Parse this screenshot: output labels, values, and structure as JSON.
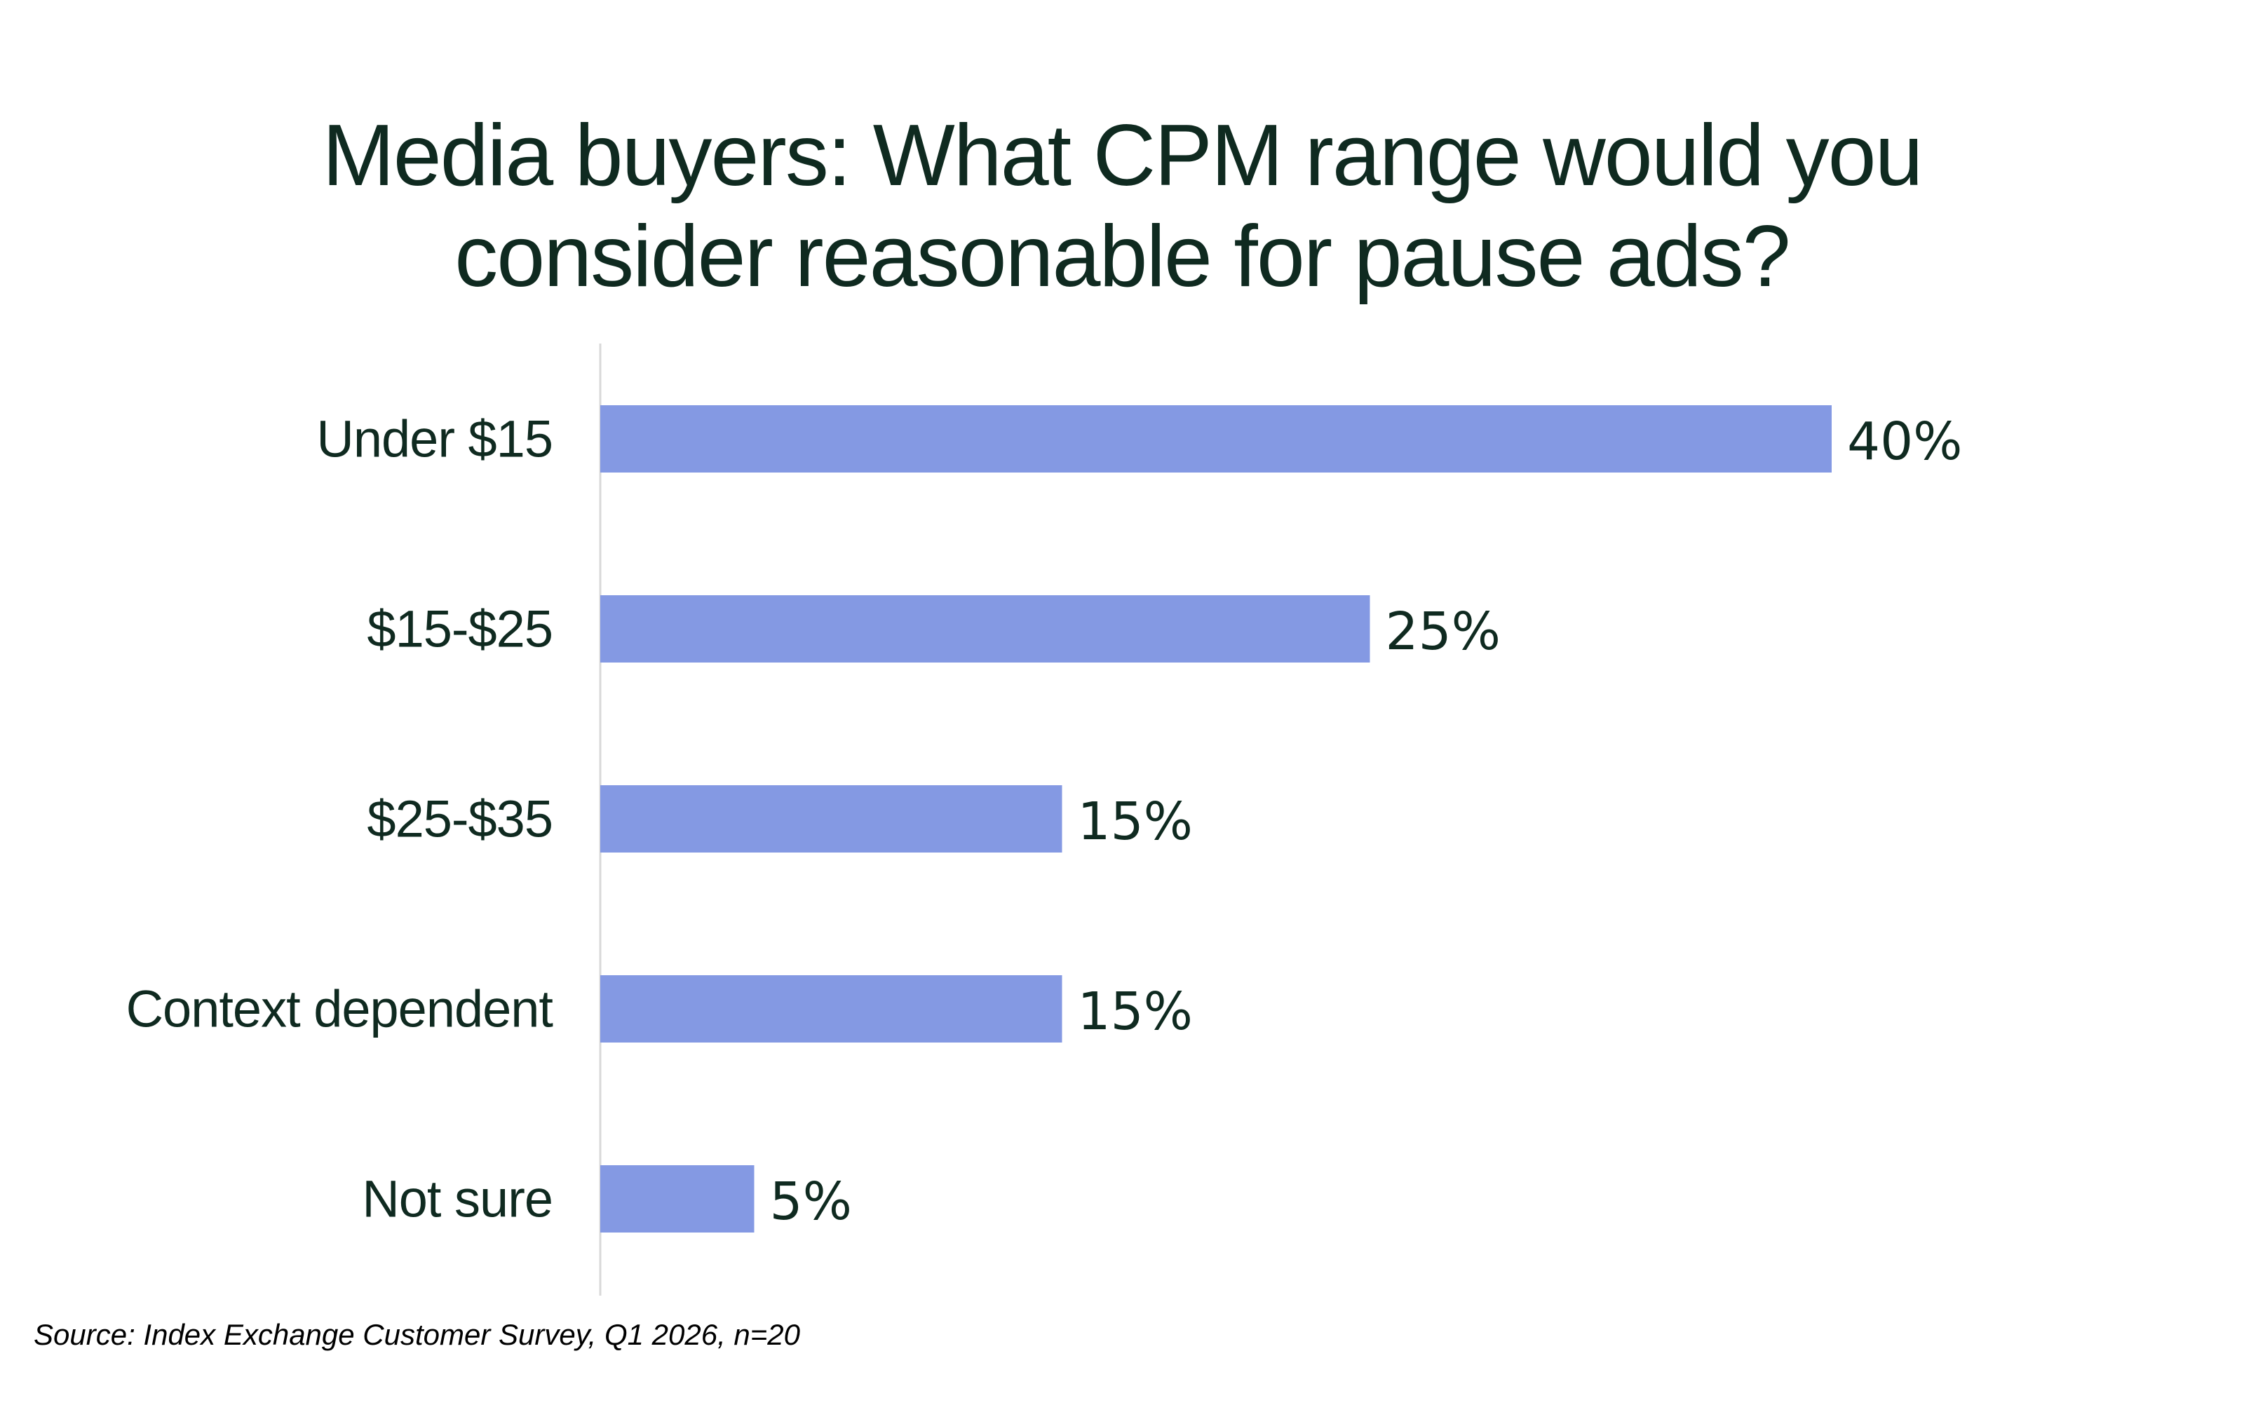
{
  "chart_data": {
    "type": "bar",
    "orientation": "horizontal",
    "title": "Media buyers: What CPM range would you consider reasonable for pause ads?",
    "categories": [
      "Under $15",
      "$15-$25",
      "$25-$35",
      "Context dependent",
      "Not sure"
    ],
    "series": [
      {
        "values": [
          40,
          25,
          15,
          15,
          5
        ],
        "data_labels": [
          "40%",
          "25%",
          "15%",
          "15%",
          "5%"
        ],
        "color": "#8499e3"
      }
    ],
    "xlim": [
      0,
      40
    ],
    "value_unit": "%",
    "grid": false,
    "legend": "none",
    "axis_color": "#d9d9d9"
  },
  "source": "Source: Index Exchange Customer Survey, Q1 2026, n=20"
}
